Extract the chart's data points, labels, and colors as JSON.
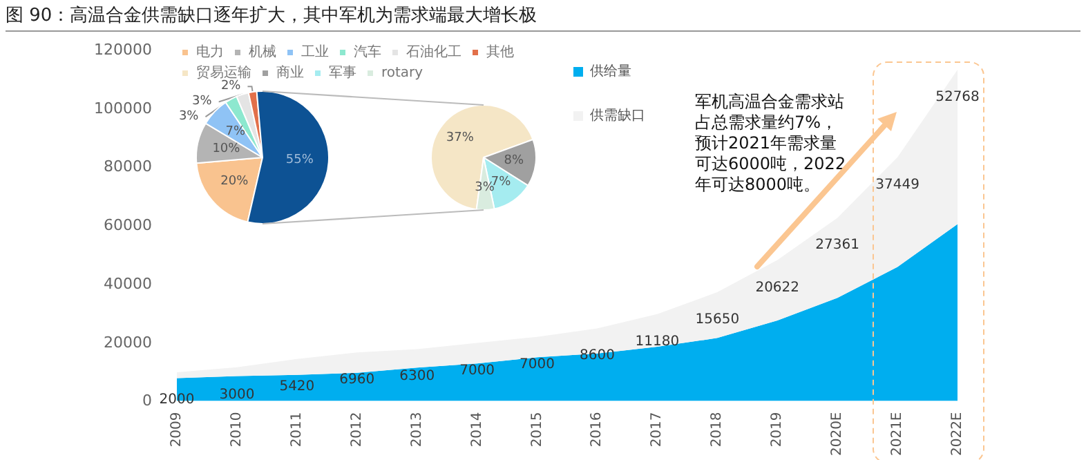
{
  "chart_data": [
    {
      "type": "area",
      "title": "图 90：高温合金供需缺口逐年扩大，其中军机为需求端最大增长极",
      "categories": [
        "2009",
        "2010",
        "2011",
        "2012",
        "2013",
        "2014",
        "2015",
        "2016",
        "2017",
        "2018",
        "2019",
        "2020E",
        "2021E",
        "2022E"
      ],
      "series": [
        {
          "name": "供给量",
          "color": "#00aeef",
          "values": [
            7800,
            8500,
            8900,
            9600,
            11400,
            12800,
            14900,
            16200,
            18500,
            21500,
            27500,
            35200,
            45800,
            60400
          ]
        },
        {
          "name": "供需缺口",
          "color": "#f2f2f2",
          "values": [
            2000,
            3000,
            5420,
            6960,
            6300,
            7000,
            7000,
            8600,
            11180,
            15650,
            20622,
            27361,
            37449,
            52768
          ],
          "value_labels": [
            "2000",
            "3000",
            "5420",
            "6960",
            "6300",
            "7000",
            "7000",
            "8600",
            "11180",
            "15650",
            "20622",
            "27361",
            "37449",
            "52768"
          ]
        }
      ],
      "stacked": true,
      "ylim": [
        0,
        120000
      ],
      "yticks": [
        0,
        20000,
        40000,
        60000,
        80000,
        100000,
        120000
      ],
      "grid": false,
      "legend": "top",
      "marker": "none",
      "annotations": [
        "军机高温合金需求站占总需求量约7%，预计2021年需求量可达6000吨，2022年可达8000吨。"
      ]
    },
    {
      "type": "pie",
      "categories": [
        "电力",
        "机械",
        "工业",
        "汽车",
        "石油化工",
        "其他",
        null
      ],
      "values": [
        20,
        10,
        7,
        3,
        3,
        2,
        55
      ],
      "colors": [
        "#f9c38f",
        "#b4b4b4",
        "#8fc3f5",
        "#8de8cf",
        "#e4e4e4",
        "#e2704a",
        "#0d5294"
      ],
      "value_labels": [
        "20%",
        "10%",
        "7%",
        "3%",
        "3%",
        "2%",
        "55%"
      ],
      "legend": "top"
    },
    {
      "type": "pie",
      "categories": [
        "贸易运输",
        "商业",
        "军事",
        "rotary"
      ],
      "values": [
        37,
        8,
        7,
        3
      ],
      "colors": [
        "#f5e6c6",
        "#a0a0a0",
        "#a5ecf0",
        "#d9ecdf"
      ],
      "value_labels": [
        "37%",
        "8%",
        "7%",
        "3%"
      ],
      "legend": "top"
    }
  ]
}
